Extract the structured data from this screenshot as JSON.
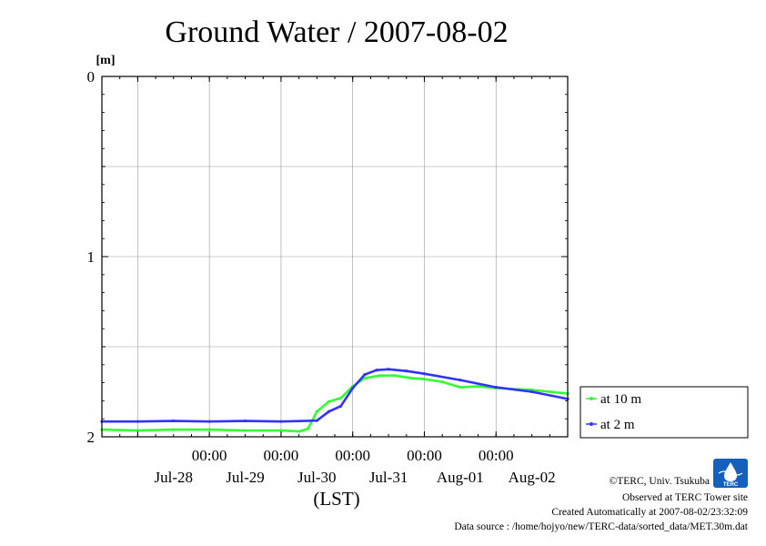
{
  "chart_data": {
    "type": "line",
    "title": "Ground Water / 2007-08-02",
    "ylabel": "[m]",
    "xlabel": "(LST)",
    "y_inverted": true,
    "ylim": [
      0,
      2
    ],
    "yticks": [
      "0",
      "1",
      "2"
    ],
    "x_time_ticks": [
      "00:00",
      "00:00",
      "00:00",
      "00:00",
      "00:00"
    ],
    "x_day_labels": [
      "Jul-28",
      "Jul-29",
      "Jul-30",
      "Jul-31",
      "Aug-01",
      "Aug-02"
    ],
    "xlim": [
      "2007-07-27T12:00",
      "2007-08-03T00:00"
    ],
    "grid": true,
    "legend_position": "right",
    "series": [
      {
        "name": "at 10 m",
        "color": "#33ff33",
        "points": [
          [
            "2007-07-27T12:00",
            1.96
          ],
          [
            "2007-07-28T00:00",
            1.965
          ],
          [
            "2007-07-28T12:00",
            1.96
          ],
          [
            "2007-07-29T00:00",
            1.96
          ],
          [
            "2007-07-29T12:00",
            1.965
          ],
          [
            "2007-07-30T00:00",
            1.965
          ],
          [
            "2007-07-30T06:00",
            1.97
          ],
          [
            "2007-07-30T09:00",
            1.955
          ],
          [
            "2007-07-30T12:00",
            1.86
          ],
          [
            "2007-07-30T16:00",
            1.805
          ],
          [
            "2007-07-30T20:00",
            1.785
          ],
          [
            "2007-07-31T00:00",
            1.72
          ],
          [
            "2007-07-31T04:00",
            1.675
          ],
          [
            "2007-07-31T09:00",
            1.66
          ],
          [
            "2007-07-31T14:00",
            1.66
          ],
          [
            "2007-07-31T20:00",
            1.675
          ],
          [
            "2007-08-01T00:00",
            1.68
          ],
          [
            "2007-08-01T06:00",
            1.695
          ],
          [
            "2007-08-01T12:00",
            1.725
          ],
          [
            "2007-08-01T18:00",
            1.72
          ],
          [
            "2007-08-02T00:00",
            1.73
          ],
          [
            "2007-08-02T12:00",
            1.74
          ],
          [
            "2007-08-02T18:00",
            1.75
          ],
          [
            "2007-08-03T00:00",
            1.76
          ]
        ]
      },
      {
        "name": "at 2 m",
        "color": "#3333ff",
        "points": [
          [
            "2007-07-27T12:00",
            1.915
          ],
          [
            "2007-07-28T00:00",
            1.915
          ],
          [
            "2007-07-28T12:00",
            1.912
          ],
          [
            "2007-07-29T00:00",
            1.915
          ],
          [
            "2007-07-29T12:00",
            1.912
          ],
          [
            "2007-07-30T00:00",
            1.915
          ],
          [
            "2007-07-30T12:00",
            1.91
          ],
          [
            "2007-07-30T16:00",
            1.86
          ],
          [
            "2007-07-30T20:00",
            1.83
          ],
          [
            "2007-07-31T00:00",
            1.73
          ],
          [
            "2007-07-31T04:00",
            1.655
          ],
          [
            "2007-07-31T08:00",
            1.63
          ],
          [
            "2007-07-31T12:00",
            1.625
          ],
          [
            "2007-07-31T18:00",
            1.635
          ],
          [
            "2007-08-01T00:00",
            1.65
          ],
          [
            "2007-08-01T12:00",
            1.685
          ],
          [
            "2007-08-02T00:00",
            1.725
          ],
          [
            "2007-08-02T12:00",
            1.75
          ],
          [
            "2007-08-03T00:00",
            1.79
          ]
        ]
      }
    ]
  },
  "credits": {
    "copyright": "©TERC, Univ. Tsukuba",
    "observed": "Observed at TERC Tower site",
    "created": "Created Automatically at 2007-08-02/23:32:09",
    "source": "Data source : /home/hojyo/new/TERC-data/sorted_data/MET.30m.dat"
  },
  "logo": {
    "text": "TERC",
    "color": "#1560bd"
  }
}
